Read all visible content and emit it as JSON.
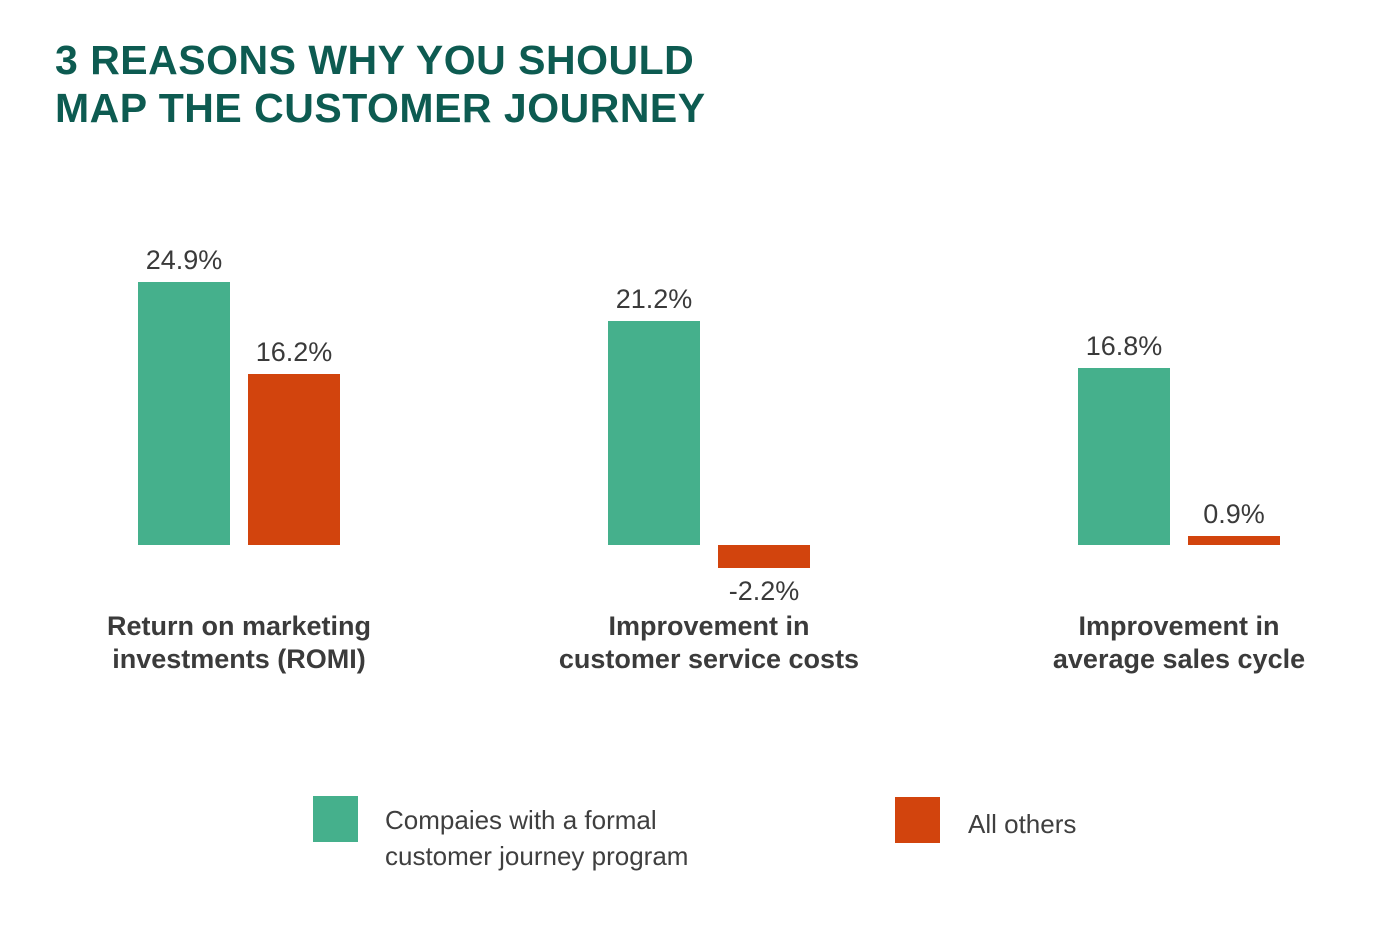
{
  "title": {
    "lines": [
      "3 REASONS WHY YOU SHOULD",
      "MAP THE CUSTOMER JOURNEY"
    ]
  },
  "chart_data": {
    "type": "bar",
    "title": "3 REASONS WHY YOU SHOULD MAP THE CUSTOMER JOURNEY",
    "unit": "percent",
    "categories": [
      "Return on marketing investments (ROMI)",
      "Improvement in customer service costs",
      "Improvement in average sales cycle"
    ],
    "category_lines": [
      [
        "Return on marketing",
        "investments (ROMI)"
      ],
      [
        "Improvement in",
        "customer service costs"
      ],
      [
        "Improvement in",
        "average sales cycle"
      ]
    ],
    "series": [
      {
        "id": "journey-program",
        "name": "Compaies with a formal customer journey program",
        "color": "#45b08c",
        "values": [
          24.9,
          21.2,
          16.8
        ],
        "labels": [
          "24.9%",
          "21.2%",
          "16.8%"
        ]
      },
      {
        "id": "all-others",
        "name": "All others",
        "color": "#d2440d",
        "values": [
          16.2,
          -2.2,
          0.9
        ],
        "labels": [
          "16.2%",
          "-2.2%",
          "0.9%"
        ]
      }
    ],
    "value_range": [
      -2.2,
      24.9
    ],
    "grid": false,
    "axes_visible": false,
    "legend_position": "bottom"
  },
  "legend": {
    "items": [
      {
        "lines": [
          "Compaies with a formal",
          "customer journey program"
        ],
        "color": "#45b08c"
      },
      {
        "lines": [
          "All others"
        ],
        "color": "#d2440d"
      }
    ]
  },
  "colors": {
    "title": "#0d5b51",
    "series1": "#45b08c",
    "series2": "#d2440d",
    "label_text": "#3a3a3a",
    "background": "#ffffff"
  }
}
